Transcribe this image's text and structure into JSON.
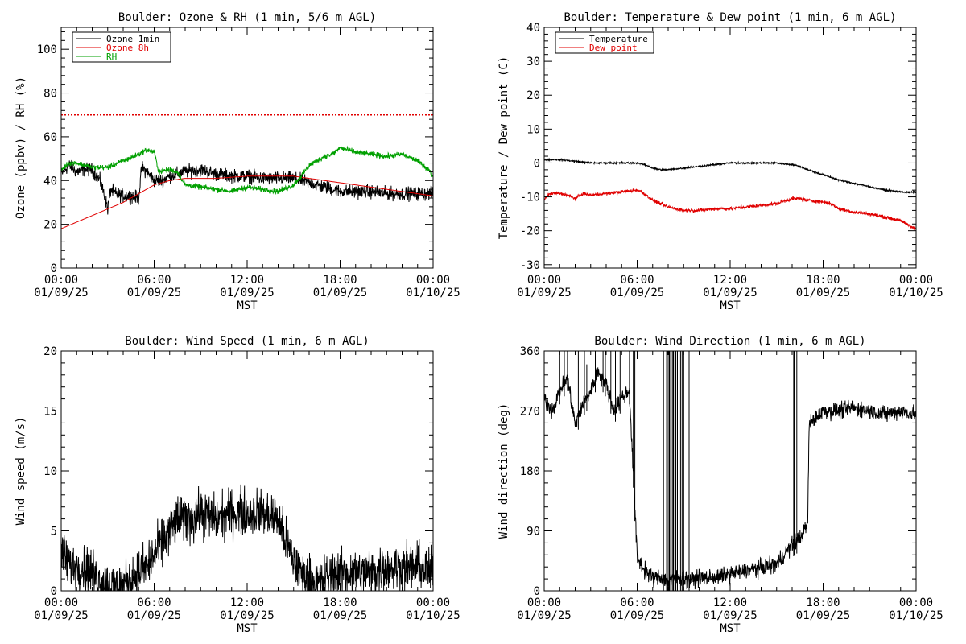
{
  "colors": {
    "black": "#000000",
    "red": "#e00000",
    "green": "#00a000"
  },
  "chart_data": [
    {
      "type": "line",
      "title": "Boulder: Ozone & RH (1 min, 5/6 m AGL)",
      "xlabel": "MST",
      "ylabel": "Ozone (ppbv) / RH (%)",
      "xlim": [
        0,
        24
      ],
      "ylim": [
        0,
        110
      ],
      "yticks": [
        0,
        20,
        40,
        60,
        80,
        100
      ],
      "xticks": [
        {
          "t": "00:00",
          "d": "01/09/25"
        },
        {
          "t": "06:00",
          "d": "01/09/25"
        },
        {
          "t": "12:00",
          "d": "01/09/25"
        },
        {
          "t": "18:00",
          "d": "01/09/25"
        },
        {
          "t": "00:00",
          "d": "01/10/25"
        }
      ],
      "legend_position": "top-left",
      "reference_line": {
        "y": 70,
        "style": "dotted",
        "color": "#e00000"
      },
      "series": [
        {
          "name": "Ozone 1min",
          "color": "#000000",
          "noise": 2.5,
          "x": [
            0,
            0.5,
            1,
            1.5,
            2,
            2.5,
            2.8,
            3,
            3.2,
            3.5,
            4,
            4.5,
            5,
            5.2,
            5.5,
            6,
            6.5,
            7,
            7.5,
            8,
            9,
            10,
            11,
            12,
            13,
            14,
            15,
            16,
            17,
            18,
            19,
            20,
            21,
            22,
            23,
            24
          ],
          "y": [
            43,
            47,
            44,
            45,
            45,
            40,
            33,
            27,
            36,
            34,
            33,
            33,
            32,
            46,
            44,
            40,
            40,
            42,
            43,
            44,
            45,
            43,
            42,
            42,
            41,
            41,
            41,
            39,
            37,
            35,
            35,
            35,
            34,
            34,
            34,
            34
          ]
        },
        {
          "name": "Ozone 8h",
          "color": "#e00000",
          "noise": 0,
          "x": [
            0,
            2,
            4,
            5,
            6,
            7,
            8,
            10,
            12,
            14,
            15,
            16,
            18,
            20,
            22,
            24
          ],
          "y": [
            18,
            24,
            30,
            34,
            38,
            40,
            41,
            41,
            42,
            42,
            42,
            41,
            39,
            37,
            35,
            33
          ]
        },
        {
          "name": "RH",
          "color": "#00a000",
          "noise": 1,
          "x": [
            0,
            0.5,
            1,
            2,
            3,
            4,
            5,
            5.5,
            6,
            6.3,
            7,
            7.5,
            8,
            9,
            10,
            11,
            12,
            13,
            14,
            15,
            15.5,
            16,
            17,
            17.5,
            18,
            19,
            20,
            21,
            22,
            23,
            23.7,
            24
          ],
          "y": [
            45,
            48,
            48,
            46,
            46,
            49,
            52,
            54,
            53,
            44,
            45,
            44,
            38,
            37,
            36,
            35,
            37,
            36,
            35,
            38,
            42,
            47,
            51,
            52,
            55,
            53,
            52,
            51,
            52,
            49,
            45,
            42
          ]
        }
      ]
    },
    {
      "type": "line",
      "title": "Boulder: Temperature & Dew point (1 min, 6 m AGL)",
      "xlabel": "MST",
      "ylabel": "Temperature / Dew point (C)",
      "xlim": [
        0,
        24
      ],
      "ylim": [
        -31,
        40
      ],
      "yticks": [
        -30,
        -20,
        -10,
        0,
        10,
        20,
        30,
        40
      ],
      "xticks": [
        {
          "t": "00:00",
          "d": "01/09/25"
        },
        {
          "t": "06:00",
          "d": "01/09/25"
        },
        {
          "t": "12:00",
          "d": "01/09/25"
        },
        {
          "t": "18:00",
          "d": "01/09/25"
        },
        {
          "t": "00:00",
          "d": "01/10/25"
        }
      ],
      "legend_position": "top-left",
      "series": [
        {
          "name": "Temperature",
          "color": "#000000",
          "noise": 0.2,
          "x": [
            0,
            1,
            2,
            3,
            4,
            5,
            6,
            6.5,
            7,
            7.5,
            8,
            9,
            10,
            11,
            12,
            13,
            14,
            15,
            16,
            16.5,
            17,
            18,
            19,
            20,
            21,
            22,
            23,
            23.5,
            24
          ],
          "y": [
            1,
            1,
            0.5,
            0,
            0,
            0,
            0,
            -0.5,
            -1.5,
            -2,
            -2,
            -1.5,
            -1,
            -0.5,
            0,
            0,
            0,
            0,
            -0.5,
            -1,
            -2,
            -3.5,
            -5,
            -6,
            -7,
            -8,
            -8.5,
            -8.7,
            -8.5
          ]
        },
        {
          "name": "Dew point",
          "color": "#e00000",
          "noise": 0.4,
          "x": [
            0,
            0.2,
            0.5,
            1,
            1.5,
            2,
            2.5,
            3,
            4,
            5,
            6,
            6.3,
            7,
            8,
            9,
            10,
            11,
            12,
            13,
            14,
            15,
            16,
            16.5,
            17,
            18,
            18.5,
            19,
            20,
            21,
            22,
            23,
            24
          ],
          "y": [
            -11,
            -9.5,
            -9,
            -9,
            -9.5,
            -10.5,
            -9,
            -9.5,
            -9,
            -8.5,
            -8,
            -8.5,
            -11,
            -13,
            -14,
            -14,
            -13.5,
            -13.5,
            -13,
            -12.5,
            -12,
            -10.5,
            -10.5,
            -11,
            -11.5,
            -12,
            -13.5,
            -14.5,
            -15,
            -16,
            -17,
            -19.5
          ]
        }
      ]
    },
    {
      "type": "line",
      "title": "Boulder: Wind Speed (1 min, 6 m AGL)",
      "xlabel": "MST",
      "ylabel": "Wind speed (m/s)",
      "xlim": [
        0,
        24
      ],
      "ylim": [
        0,
        20
      ],
      "yticks": [
        0,
        5,
        10,
        15,
        20
      ],
      "xticks": [
        {
          "t": "00:00",
          "d": "01/09/25"
        },
        {
          "t": "06:00",
          "d": "01/09/25"
        },
        {
          "t": "12:00",
          "d": "01/09/25"
        },
        {
          "t": "18:00",
          "d": "01/09/25"
        },
        {
          "t": "00:00",
          "d": "01/10/25"
        }
      ],
      "series": [
        {
          "color": "#000000",
          "noise": 1.6,
          "x": [
            0,
            0.3,
            0.8,
            1.5,
            2,
            2.5,
            3,
            3.5,
            4,
            4.5,
            5,
            5.5,
            6,
            6.5,
            7,
            7.5,
            8,
            8.5,
            9,
            10,
            11,
            12,
            13,
            14,
            14.5,
            15,
            15.5,
            16,
            16.5,
            17,
            17.5,
            18,
            19,
            20,
            21,
            22,
            23,
            24
          ],
          "y": [
            3.5,
            2.5,
            2,
            2,
            1.5,
            0.8,
            0.5,
            0.4,
            0.5,
            1,
            1.5,
            2,
            3,
            4,
            5,
            6,
            6,
            6,
            6.5,
            6,
            6.5,
            6.5,
            6.5,
            6,
            4,
            2.5,
            1.5,
            1,
            0.5,
            1,
            1.5,
            1.5,
            1.5,
            1.5,
            2,
            2,
            2,
            1.5
          ]
        }
      ]
    },
    {
      "type": "line",
      "title": "Boulder: Wind Direction (1 min, 6 m AGL)",
      "xlabel": "MST",
      "ylabel": "Wind direction (deg)",
      "xlim": [
        0,
        24
      ],
      "ylim": [
        0,
        360
      ],
      "yticks": [
        0,
        90,
        180,
        270,
        360
      ],
      "xticks": [
        {
          "t": "00:00",
          "d": "01/09/25"
        },
        {
          "t": "06:00",
          "d": "01/09/25"
        },
        {
          "t": "12:00",
          "d": "01/09/25"
        },
        {
          "t": "18:00",
          "d": "01/09/25"
        },
        {
          "t": "00:00",
          "d": "01/10/25"
        }
      ],
      "series": [
        {
          "color": "#000000",
          "noise": 10,
          "x": [
            0,
            0.5,
            1,
            1.5,
            2,
            2.5,
            3,
            3.5,
            4,
            4.5,
            5,
            5.5,
            6,
            6.5,
            7,
            7.5,
            8,
            8.5,
            9,
            9.5,
            10,
            11,
            12,
            13,
            14,
            15,
            15.5,
            16,
            16.5,
            17,
            17.1,
            17.5,
            18,
            19,
            20,
            21,
            22,
            23,
            24
          ],
          "y": [
            290,
            270,
            300,
            320,
            250,
            280,
            300,
            330,
            310,
            270,
            290,
            300,
            50,
            30,
            20,
            20,
            15,
            20,
            20,
            15,
            20,
            20,
            25,
            30,
            35,
            40,
            55,
            70,
            80,
            100,
            250,
            260,
            270,
            270,
            275,
            270,
            265,
            270,
            265
          ]
        },
        {
          "color": "#000000",
          "noise": 0,
          "spikes": true,
          "x": [
            1.0,
            1.3,
            1.5,
            2.2,
            2.6,
            2.75,
            3.3,
            3.8,
            3.95,
            4.3,
            4.6,
            4.9,
            5.5,
            5.75,
            5.85,
            7.7,
            7.9,
            7.95,
            8.05,
            8.1,
            8.2,
            8.3,
            8.35,
            8.45,
            8.5,
            8.6,
            8.7,
            8.8,
            8.9,
            9.0,
            9.35,
            16.1,
            16.15,
            16.3
          ],
          "y": [
            360,
            360,
            360,
            360,
            360,
            340,
            360,
            360,
            360,
            360,
            360,
            360,
            360,
            360,
            360,
            360,
            360,
            360,
            360,
            360,
            360,
            360,
            360,
            360,
            360,
            360,
            360,
            360,
            360,
            360,
            360,
            360,
            360,
            360
          ]
        }
      ]
    }
  ]
}
